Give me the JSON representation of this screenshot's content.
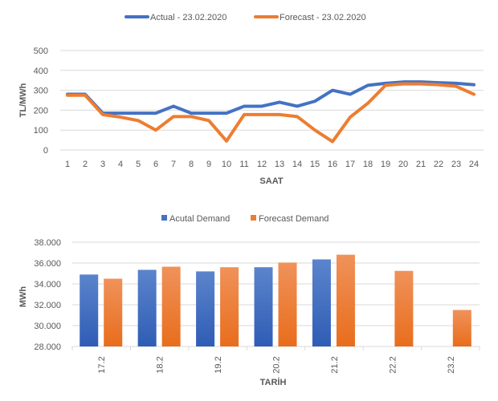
{
  "chart_data": [
    {
      "type": "line",
      "title": "",
      "xlabel": "SAAT",
      "ylabel": "TL/MWh",
      "ylim": [
        0,
        500
      ],
      "yticks": [
        "0",
        "100",
        "200",
        "300",
        "400",
        "500"
      ],
      "x": [
        "1",
        "2",
        "3",
        "4",
        "5",
        "6",
        "7",
        "8",
        "9",
        "10",
        "11",
        "12",
        "13",
        "14",
        "15",
        "16",
        "17",
        "18",
        "19",
        "20",
        "21",
        "22",
        "23",
        "24"
      ],
      "grid": true,
      "legend": "top",
      "series": [
        {
          "name": "Actual - 23.02.2020",
          "color": "#4472C4",
          "values": [
            280,
            280,
            185,
            185,
            185,
            185,
            220,
            185,
            185,
            185,
            220,
            220,
            240,
            220,
            245,
            300,
            280,
            325,
            335,
            342,
            342,
            338,
            335,
            328
          ]
        },
        {
          "name": "Forecast - 23.02.2020",
          "color": "#ED7D31",
          "values": [
            275,
            275,
            178,
            165,
            148,
            100,
            168,
            168,
            148,
            45,
            178,
            178,
            178,
            168,
            100,
            42,
            165,
            235,
            325,
            332,
            332,
            328,
            320,
            280
          ]
        }
      ]
    },
    {
      "type": "bar",
      "title": "",
      "xlabel": "TARİH",
      "ylabel": "MWh",
      "ylim": [
        28000,
        38000
      ],
      "yticks": [
        "28.000",
        "30.000",
        "32.000",
        "34.000",
        "36.000",
        "38.000"
      ],
      "categories": [
        "17.2",
        "18.2",
        "19.2",
        "20.2",
        "21.2",
        "22.2",
        "23.2"
      ],
      "grid": true,
      "legend": "top",
      "series": [
        {
          "name": "Acutal Demand",
          "color": "#4472C4",
          "values": [
            34900,
            35350,
            35200,
            35600,
            36350,
            null,
            null
          ]
        },
        {
          "name": "Forecast Demand",
          "color": "#ED7D31",
          "values": [
            34500,
            35650,
            35600,
            36050,
            36800,
            35250,
            31500
          ]
        }
      ]
    }
  ]
}
